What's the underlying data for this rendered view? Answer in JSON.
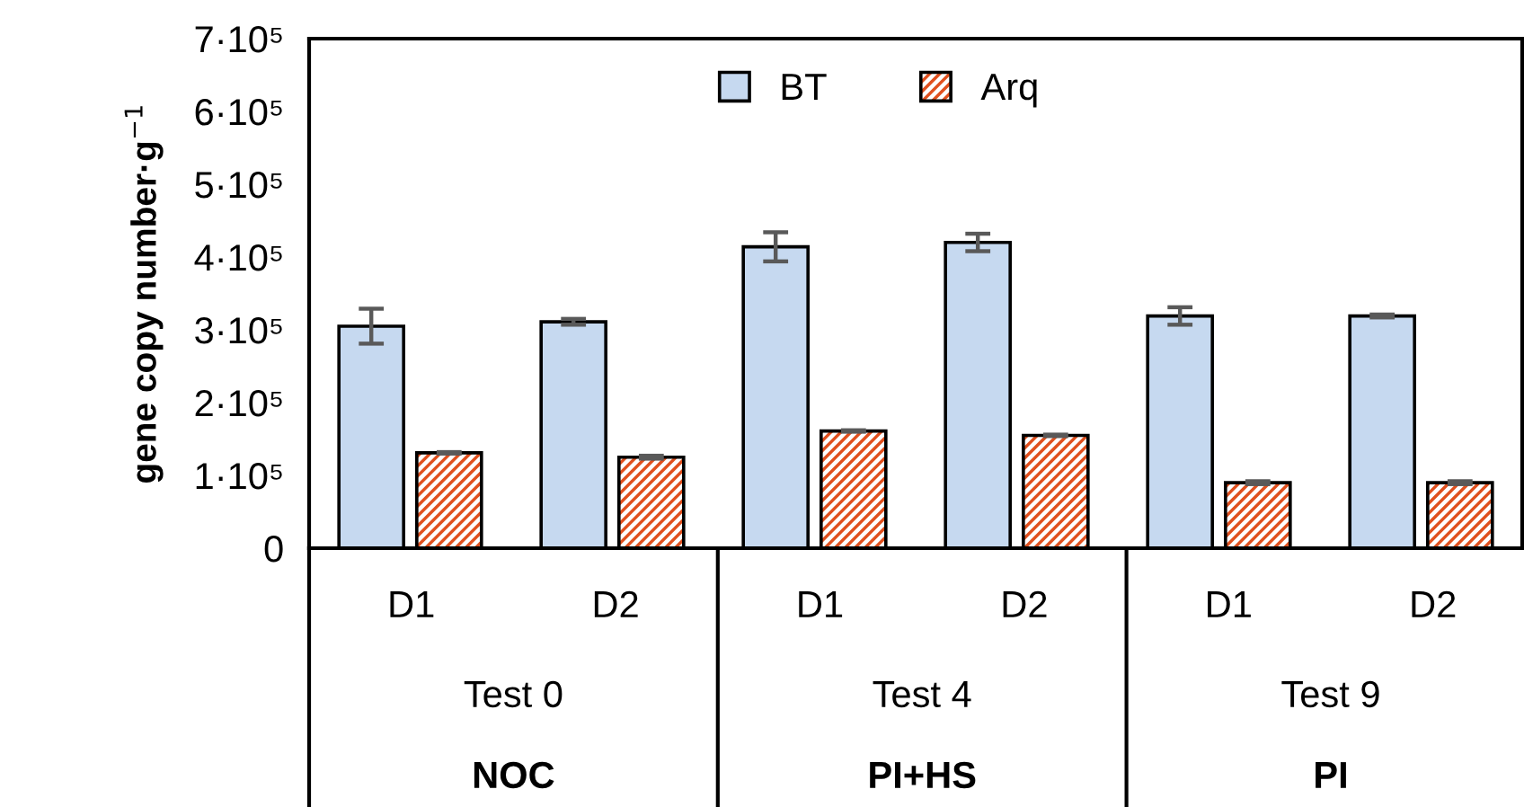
{
  "chart_data": {
    "type": "bar",
    "ylabel": "gene copy number·g$^{−1}$",
    "categories": [
      "D1",
      "D2",
      "D1",
      "D2",
      "D1",
      "D2"
    ],
    "series": [
      {
        "name": "BT",
        "color": "#c6d9f0",
        "values": [
          305000,
          311000,
          414000,
          420000,
          319000,
          319000
        ],
        "errors": [
          24000,
          4000,
          20000,
          12000,
          12000,
          2000
        ]
      },
      {
        "name": "Arq",
        "color": "#e0501e",
        "values": [
          131000,
          125000,
          161000,
          155000,
          90000,
          90000
        ],
        "errors": [
          1000,
          2000,
          1000,
          1000,
          2000,
          2000
        ]
      }
    ],
    "ylim": [
      0,
      700000
    ],
    "yticks": [
      0,
      {
        "value": 100000,
        "label": "1·10⁵"
      },
      {
        "value": 200000,
        "label": "2·10⁵"
      },
      {
        "value": 300000,
        "label": "3·10⁵"
      },
      {
        "value": 400000,
        "label": "4·10⁵"
      },
      {
        "value": 500000,
        "label": "5·10⁵"
      },
      {
        "value": 600000,
        "label": "6·10⁵"
      },
      {
        "value": 700000,
        "label": "7·10⁵"
      }
    ],
    "annotations": [
      "Test 0",
      "Test 4",
      "Test 9",
      "NOC",
      "PI+HS",
      "PI"
    ],
    "legend": "top",
    "grid": false
  }
}
